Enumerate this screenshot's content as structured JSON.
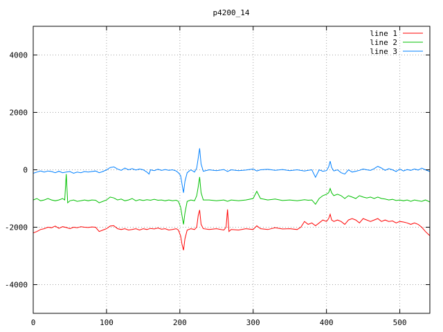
{
  "chart_data": {
    "type": "line",
    "title": "p4200_14",
    "xlabel": "",
    "ylabel": "",
    "xlim": [
      0,
      541
    ],
    "ylim": [
      -5000,
      5000
    ],
    "xticks": [
      0,
      100,
      200,
      300,
      400,
      500
    ],
    "yticks": [
      -4000,
      -2000,
      0,
      2000,
      4000
    ],
    "grid": true,
    "legend_position": "top-right",
    "series": [
      {
        "name": "line 1",
        "color": "#ff0000",
        "points": [
          [
            0,
            -2200
          ],
          [
            5,
            -2150
          ],
          [
            10,
            -2080
          ],
          [
            15,
            -2050
          ],
          [
            20,
            -2000
          ],
          [
            25,
            -2020
          ],
          [
            30,
            -1960
          ],
          [
            35,
            -2040
          ],
          [
            40,
            -1980
          ],
          [
            45,
            -2010
          ],
          [
            50,
            -2050
          ],
          [
            55,
            -2000
          ],
          [
            60,
            -2020
          ],
          [
            65,
            -1980
          ],
          [
            70,
            -2000
          ],
          [
            75,
            -2010
          ],
          [
            80,
            -1990
          ],
          [
            85,
            -2000
          ],
          [
            90,
            -2150
          ],
          [
            95,
            -2100
          ],
          [
            100,
            -2050
          ],
          [
            105,
            -1960
          ],
          [
            110,
            -1950
          ],
          [
            115,
            -2050
          ],
          [
            120,
            -2080
          ],
          [
            125,
            -2050
          ],
          [
            130,
            -2100
          ],
          [
            135,
            -2080
          ],
          [
            140,
            -2050
          ],
          [
            145,
            -2100
          ],
          [
            150,
            -2050
          ],
          [
            155,
            -2080
          ],
          [
            160,
            -2040
          ],
          [
            165,
            -2060
          ],
          [
            170,
            -2030
          ],
          [
            175,
            -2070
          ],
          [
            180,
            -2050
          ],
          [
            185,
            -2100
          ],
          [
            190,
            -2080
          ],
          [
            195,
            -2050
          ],
          [
            198,
            -2100
          ],
          [
            201,
            -2300
          ],
          [
            203,
            -2600
          ],
          [
            205,
            -2800
          ],
          [
            207,
            -2400
          ],
          [
            210,
            -2100
          ],
          [
            215,
            -2050
          ],
          [
            220,
            -2080
          ],
          [
            223,
            -2000
          ],
          [
            225,
            -1600
          ],
          [
            227,
            -1400
          ],
          [
            229,
            -1900
          ],
          [
            232,
            -2050
          ],
          [
            240,
            -2080
          ],
          [
            250,
            -2050
          ],
          [
            260,
            -2100
          ],
          [
            263,
            -2000
          ],
          [
            265,
            -1380
          ],
          [
            267,
            -2150
          ],
          [
            270,
            -2080
          ],
          [
            280,
            -2100
          ],
          [
            290,
            -2050
          ],
          [
            300,
            -2080
          ],
          [
            305,
            -1950
          ],
          [
            310,
            -2050
          ],
          [
            320,
            -2080
          ],
          [
            330,
            -2020
          ],
          [
            340,
            -2060
          ],
          [
            350,
            -2050
          ],
          [
            360,
            -2080
          ],
          [
            365,
            -2000
          ],
          [
            370,
            -1800
          ],
          [
            375,
            -1900
          ],
          [
            380,
            -1850
          ],
          [
            385,
            -1950
          ],
          [
            390,
            -1850
          ],
          [
            395,
            -1750
          ],
          [
            400,
            -1800
          ],
          [
            403,
            -1700
          ],
          [
            405,
            -1550
          ],
          [
            407,
            -1750
          ],
          [
            410,
            -1800
          ],
          [
            415,
            -1750
          ],
          [
            420,
            -1800
          ],
          [
            425,
            -1900
          ],
          [
            430,
            -1750
          ],
          [
            435,
            -1700
          ],
          [
            440,
            -1750
          ],
          [
            445,
            -1850
          ],
          [
            450,
            -1700
          ],
          [
            455,
            -1750
          ],
          [
            460,
            -1800
          ],
          [
            465,
            -1750
          ],
          [
            470,
            -1700
          ],
          [
            475,
            -1800
          ],
          [
            480,
            -1750
          ],
          [
            485,
            -1800
          ],
          [
            490,
            -1780
          ],
          [
            495,
            -1850
          ],
          [
            500,
            -1800
          ],
          [
            505,
            -1820
          ],
          [
            510,
            -1850
          ],
          [
            515,
            -1900
          ],
          [
            520,
            -1850
          ],
          [
            525,
            -1900
          ],
          [
            530,
            -2000
          ],
          [
            535,
            -2150
          ],
          [
            541,
            -2300
          ]
        ]
      },
      {
        "name": "line 2",
        "color": "#00c000",
        "points": [
          [
            0,
            -1050
          ],
          [
            5,
            -1000
          ],
          [
            10,
            -1080
          ],
          [
            15,
            -1050
          ],
          [
            20,
            -1000
          ],
          [
            25,
            -1050
          ],
          [
            30,
            -1080
          ],
          [
            35,
            -1050
          ],
          [
            40,
            -1000
          ],
          [
            43,
            -1050
          ],
          [
            45,
            -150
          ],
          [
            47,
            -1150
          ],
          [
            50,
            -1080
          ],
          [
            55,
            -1050
          ],
          [
            60,
            -1100
          ],
          [
            65,
            -1080
          ],
          [
            70,
            -1050
          ],
          [
            75,
            -1080
          ],
          [
            80,
            -1050
          ],
          [
            85,
            -1060
          ],
          [
            90,
            -1150
          ],
          [
            95,
            -1100
          ],
          [
            100,
            -1050
          ],
          [
            105,
            -950
          ],
          [
            110,
            -980
          ],
          [
            115,
            -1050
          ],
          [
            120,
            -1020
          ],
          [
            125,
            -1080
          ],
          [
            130,
            -1050
          ],
          [
            135,
            -1000
          ],
          [
            140,
            -1080
          ],
          [
            145,
            -1040
          ],
          [
            150,
            -1070
          ],
          [
            155,
            -1040
          ],
          [
            160,
            -1060
          ],
          [
            165,
            -1030
          ],
          [
            170,
            -1060
          ],
          [
            175,
            -1050
          ],
          [
            180,
            -1080
          ],
          [
            185,
            -1050
          ],
          [
            190,
            -1080
          ],
          [
            195,
            -1060
          ],
          [
            198,
            -1100
          ],
          [
            201,
            -1300
          ],
          [
            203,
            -1600
          ],
          [
            205,
            -1900
          ],
          [
            207,
            -1500
          ],
          [
            210,
            -1100
          ],
          [
            215,
            -1050
          ],
          [
            220,
            -1080
          ],
          [
            223,
            -900
          ],
          [
            225,
            -600
          ],
          [
            227,
            -250
          ],
          [
            229,
            -800
          ],
          [
            232,
            -1050
          ],
          [
            240,
            -1050
          ],
          [
            250,
            -1080
          ],
          [
            260,
            -1050
          ],
          [
            265,
            -1100
          ],
          [
            270,
            -1050
          ],
          [
            280,
            -1080
          ],
          [
            290,
            -1050
          ],
          [
            300,
            -1000
          ],
          [
            305,
            -750
          ],
          [
            310,
            -1000
          ],
          [
            320,
            -1050
          ],
          [
            330,
            -1020
          ],
          [
            340,
            -1070
          ],
          [
            350,
            -1050
          ],
          [
            360,
            -1080
          ],
          [
            370,
            -1040
          ],
          [
            375,
            -1060
          ],
          [
            380,
            -1050
          ],
          [
            385,
            -1200
          ],
          [
            390,
            -1000
          ],
          [
            395,
            -900
          ],
          [
            400,
            -850
          ],
          [
            403,
            -800
          ],
          [
            405,
            -650
          ],
          [
            407,
            -800
          ],
          [
            410,
            -900
          ],
          [
            415,
            -850
          ],
          [
            420,
            -900
          ],
          [
            425,
            -1000
          ],
          [
            430,
            -900
          ],
          [
            435,
            -950
          ],
          [
            440,
            -1000
          ],
          [
            445,
            -900
          ],
          [
            450,
            -950
          ],
          [
            455,
            -980
          ],
          [
            460,
            -950
          ],
          [
            465,
            -1000
          ],
          [
            470,
            -950
          ],
          [
            475,
            -1000
          ],
          [
            480,
            -1020
          ],
          [
            485,
            -1050
          ],
          [
            490,
            -1030
          ],
          [
            495,
            -1070
          ],
          [
            500,
            -1050
          ],
          [
            505,
            -1080
          ],
          [
            510,
            -1050
          ],
          [
            515,
            -1100
          ],
          [
            520,
            -1050
          ],
          [
            525,
            -1080
          ],
          [
            530,
            -1100
          ],
          [
            535,
            -1050
          ],
          [
            541,
            -1120
          ]
        ]
      },
      {
        "name": "line 3",
        "color": "#0080ff",
        "points": [
          [
            0,
            -120
          ],
          [
            5,
            -80
          ],
          [
            10,
            -40
          ],
          [
            15,
            -80
          ],
          [
            20,
            -40
          ],
          [
            25,
            -60
          ],
          [
            30,
            -100
          ],
          [
            35,
            -50
          ],
          [
            40,
            -100
          ],
          [
            45,
            -80
          ],
          [
            50,
            -60
          ],
          [
            55,
            -120
          ],
          [
            60,
            -80
          ],
          [
            65,
            -100
          ],
          [
            70,
            -60
          ],
          [
            75,
            -80
          ],
          [
            80,
            -60
          ],
          [
            85,
            -40
          ],
          [
            90,
            -100
          ],
          [
            95,
            -60
          ],
          [
            100,
            0
          ],
          [
            105,
            80
          ],
          [
            110,
            100
          ],
          [
            115,
            30
          ],
          [
            120,
            -20
          ],
          [
            125,
            60
          ],
          [
            130,
            0
          ],
          [
            135,
            40
          ],
          [
            140,
            -10
          ],
          [
            145,
            30
          ],
          [
            150,
            0
          ],
          [
            155,
            -80
          ],
          [
            158,
            -150
          ],
          [
            160,
            0
          ],
          [
            165,
            -30
          ],
          [
            170,
            20
          ],
          [
            175,
            -20
          ],
          [
            180,
            10
          ],
          [
            185,
            -20
          ],
          [
            190,
            0
          ],
          [
            195,
            -40
          ],
          [
            198,
            -100
          ],
          [
            201,
            -200
          ],
          [
            203,
            -500
          ],
          [
            205,
            -800
          ],
          [
            207,
            -400
          ],
          [
            210,
            -100
          ],
          [
            215,
            0
          ],
          [
            220,
            -80
          ],
          [
            223,
            60
          ],
          [
            225,
            400
          ],
          [
            227,
            750
          ],
          [
            229,
            200
          ],
          [
            232,
            -50
          ],
          [
            240,
            0
          ],
          [
            250,
            -30
          ],
          [
            260,
            10
          ],
          [
            265,
            -60
          ],
          [
            270,
            0
          ],
          [
            280,
            -30
          ],
          [
            290,
            -10
          ],
          [
            300,
            30
          ],
          [
            305,
            -40
          ],
          [
            310,
            0
          ],
          [
            320,
            20
          ],
          [
            330,
            -20
          ],
          [
            340,
            10
          ],
          [
            350,
            -30
          ],
          [
            360,
            0
          ],
          [
            370,
            -40
          ],
          [
            375,
            -20
          ],
          [
            380,
            0
          ],
          [
            385,
            -260
          ],
          [
            390,
            0
          ],
          [
            395,
            -50
          ],
          [
            400,
            -30
          ],
          [
            403,
            100
          ],
          [
            405,
            300
          ],
          [
            407,
            80
          ],
          [
            410,
            -40
          ],
          [
            415,
            0
          ],
          [
            420,
            -100
          ],
          [
            425,
            -150
          ],
          [
            430,
            0
          ],
          [
            435,
            -80
          ],
          [
            440,
            -50
          ],
          [
            445,
            -20
          ],
          [
            450,
            30
          ],
          [
            455,
            0
          ],
          [
            460,
            -20
          ],
          [
            465,
            40
          ],
          [
            470,
            120
          ],
          [
            475,
            60
          ],
          [
            480,
            -20
          ],
          [
            485,
            40
          ],
          [
            490,
            0
          ],
          [
            495,
            -60
          ],
          [
            500,
            30
          ],
          [
            505,
            -40
          ],
          [
            510,
            10
          ],
          [
            515,
            -20
          ],
          [
            520,
            30
          ],
          [
            525,
            -10
          ],
          [
            530,
            60
          ],
          [
            535,
            0
          ],
          [
            541,
            -60
          ]
        ]
      }
    ]
  }
}
